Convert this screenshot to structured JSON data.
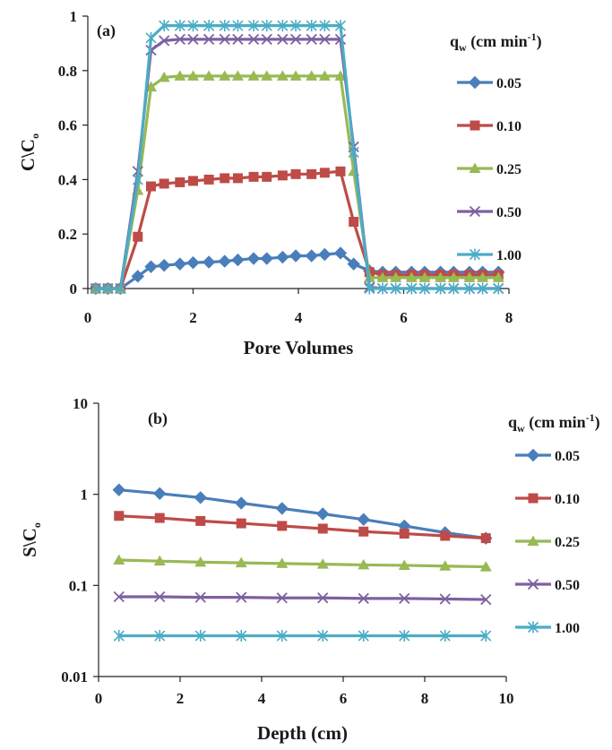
{
  "chart_data": [
    {
      "type": "line",
      "panel_label": "(a)",
      "xlabel": "Pore Volumes",
      "ylabel": "C\\Co",
      "ylabel_main": "C\\C",
      "ylabel_sub": "o",
      "xlim": [
        0,
        8
      ],
      "ylim": [
        0,
        1
      ],
      "x_ticks": [
        "0",
        "2",
        "4",
        "6",
        "8"
      ],
      "y_ticks": [
        "0",
        "0.2",
        "0.4",
        "0.6",
        "0.8",
        "1"
      ],
      "y_scale": "linear",
      "legend_title": "qw (cm min-1)",
      "legend_title_main": "q",
      "legend_title_sub": "w",
      "legend_title_unit": "(cm min",
      "legend_title_sup": "-1",
      "legend_title_close": ")",
      "legend_position": "right",
      "series": [
        {
          "name": "0.05",
          "color": "#4a7ebb",
          "marker": "diamond",
          "x": [
            0.15,
            0.38,
            0.62,
            0.95,
            1.2,
            1.45,
            1.75,
            2.0,
            2.3,
            2.6,
            2.85,
            3.15,
            3.4,
            3.7,
            3.95,
            4.25,
            4.5,
            4.8,
            5.05,
            5.35,
            5.6,
            5.85,
            6.15,
            6.4,
            6.7,
            6.95,
            7.25,
            7.5,
            7.8
          ],
          "y": [
            0,
            0,
            0,
            0.045,
            0.08,
            0.085,
            0.09,
            0.095,
            0.097,
            0.1,
            0.105,
            0.11,
            0.11,
            0.115,
            0.12,
            0.12,
            0.125,
            0.13,
            0.09,
            0.065,
            0.06,
            0.06,
            0.06,
            0.06,
            0.06,
            0.06,
            0.06,
            0.06,
            0.06
          ]
        },
        {
          "name": "0.10",
          "color": "#be4b48",
          "marker": "square",
          "x": [
            0.15,
            0.38,
            0.62,
            0.95,
            1.2,
            1.45,
            1.75,
            2.0,
            2.3,
            2.6,
            2.85,
            3.15,
            3.4,
            3.7,
            3.95,
            4.25,
            4.5,
            4.8,
            5.05,
            5.35,
            5.6,
            5.85,
            6.15,
            6.4,
            6.7,
            6.95,
            7.25,
            7.5,
            7.8
          ],
          "y": [
            0,
            0,
            0,
            0.19,
            0.375,
            0.385,
            0.39,
            0.395,
            0.4,
            0.405,
            0.405,
            0.41,
            0.41,
            0.415,
            0.42,
            0.42,
            0.425,
            0.43,
            0.245,
            0.06,
            0.05,
            0.05,
            0.05,
            0.05,
            0.05,
            0.05,
            0.05,
            0.05,
            0.05
          ]
        },
        {
          "name": "0.25",
          "color": "#98b954",
          "marker": "triangle",
          "x": [
            0.15,
            0.38,
            0.62,
            0.95,
            1.2,
            1.45,
            1.75,
            2.0,
            2.3,
            2.6,
            2.85,
            3.15,
            3.4,
            3.7,
            3.95,
            4.25,
            4.5,
            4.8,
            5.05,
            5.35,
            5.6,
            5.85,
            6.15,
            6.4,
            6.7,
            6.95,
            7.25,
            7.5,
            7.8
          ],
          "y": [
            0,
            0,
            0,
            0.36,
            0.74,
            0.775,
            0.78,
            0.78,
            0.78,
            0.78,
            0.78,
            0.78,
            0.78,
            0.78,
            0.78,
            0.78,
            0.78,
            0.78,
            0.43,
            0.04,
            0.04,
            0.04,
            0.04,
            0.04,
            0.04,
            0.04,
            0.04,
            0.04,
            0.04
          ]
        },
        {
          "name": "0.50",
          "color": "#7d60a0",
          "marker": "x",
          "x": [
            0.15,
            0.38,
            0.62,
            0.95,
            1.2,
            1.45,
            1.75,
            2.0,
            2.3,
            2.6,
            2.85,
            3.15,
            3.4,
            3.7,
            3.95,
            4.25,
            4.5,
            4.8,
            5.05,
            5.35,
            5.6,
            5.85,
            6.15,
            6.4,
            6.7,
            6.95,
            7.25,
            7.5,
            7.8
          ],
          "y": [
            0,
            0,
            0,
            0.43,
            0.875,
            0.91,
            0.915,
            0.915,
            0.915,
            0.915,
            0.915,
            0.915,
            0.915,
            0.915,
            0.915,
            0.915,
            0.915,
            0.915,
            0.52,
            0.005,
            0,
            0,
            0,
            0,
            0,
            0,
            0,
            0,
            0
          ]
        },
        {
          "name": "1.00",
          "color": "#4bacc6",
          "marker": "asterisk",
          "x": [
            0.15,
            0.38,
            0.62,
            0.95,
            1.2,
            1.45,
            1.75,
            2.0,
            2.3,
            2.6,
            2.85,
            3.15,
            3.4,
            3.7,
            3.95,
            4.25,
            4.5,
            4.8,
            5.05,
            5.35,
            5.6,
            5.85,
            6.15,
            6.4,
            6.7,
            6.95,
            7.25,
            7.5,
            7.8
          ],
          "y": [
            0,
            0,
            0,
            0.4,
            0.92,
            0.965,
            0.965,
            0.965,
            0.965,
            0.965,
            0.965,
            0.965,
            0.965,
            0.965,
            0.965,
            0.965,
            0.965,
            0.965,
            0.5,
            0,
            0,
            0,
            0,
            0,
            0,
            0,
            0,
            0,
            0
          ]
        }
      ]
    },
    {
      "type": "line",
      "panel_label": "(b)",
      "xlabel": "Depth (cm)",
      "ylabel": "S\\Co",
      "ylabel_main": "S\\C",
      "ylabel_sub": "o",
      "xlim": [
        0,
        10
      ],
      "ylim": [
        0.01,
        10
      ],
      "x_ticks": [
        "0",
        "2",
        "4",
        "6",
        "8",
        "10"
      ],
      "y_ticks": [
        "0.01",
        "0.1",
        "1",
        "10"
      ],
      "y_scale": "log",
      "legend_title": "qw (cm min-1)",
      "legend_title_main": "q",
      "legend_title_sub": "w",
      "legend_title_unit": "(cm min",
      "legend_title_sup": "-1",
      "legend_title_close": ")",
      "legend_position": "right",
      "series": [
        {
          "name": "0.05",
          "color": "#4a7ebb",
          "marker": "diamond",
          "x": [
            0.5,
            1.5,
            2.5,
            3.5,
            4.5,
            5.5,
            6.5,
            7.5,
            8.5,
            9.5
          ],
          "y": [
            1.12,
            1.02,
            0.92,
            0.8,
            0.7,
            0.61,
            0.53,
            0.45,
            0.38,
            0.33
          ]
        },
        {
          "name": "0.10",
          "color": "#be4b48",
          "marker": "square",
          "x": [
            0.5,
            1.5,
            2.5,
            3.5,
            4.5,
            5.5,
            6.5,
            7.5,
            8.5,
            9.5
          ],
          "y": [
            0.58,
            0.55,
            0.51,
            0.48,
            0.45,
            0.42,
            0.39,
            0.37,
            0.35,
            0.33
          ]
        },
        {
          "name": "0.25",
          "color": "#98b954",
          "marker": "triangle",
          "x": [
            0.5,
            1.5,
            2.5,
            3.5,
            4.5,
            5.5,
            6.5,
            7.5,
            8.5,
            9.5
          ],
          "y": [
            0.19,
            0.185,
            0.18,
            0.177,
            0.174,
            0.171,
            0.168,
            0.166,
            0.163,
            0.16
          ]
        },
        {
          "name": "0.50",
          "color": "#7d60a0",
          "marker": "x",
          "x": [
            0.5,
            1.5,
            2.5,
            3.5,
            4.5,
            5.5,
            6.5,
            7.5,
            8.5,
            9.5
          ],
          "y": [
            0.075,
            0.075,
            0.074,
            0.074,
            0.073,
            0.073,
            0.072,
            0.072,
            0.071,
            0.07
          ]
        },
        {
          "name": "1.00",
          "color": "#4bacc6",
          "marker": "asterisk",
          "x": [
            0.5,
            1.5,
            2.5,
            3.5,
            4.5,
            5.5,
            6.5,
            7.5,
            8.5,
            9.5
          ],
          "y": [
            0.028,
            0.028,
            0.028,
            0.028,
            0.028,
            0.028,
            0.028,
            0.028,
            0.028,
            0.028
          ]
        }
      ]
    }
  ]
}
